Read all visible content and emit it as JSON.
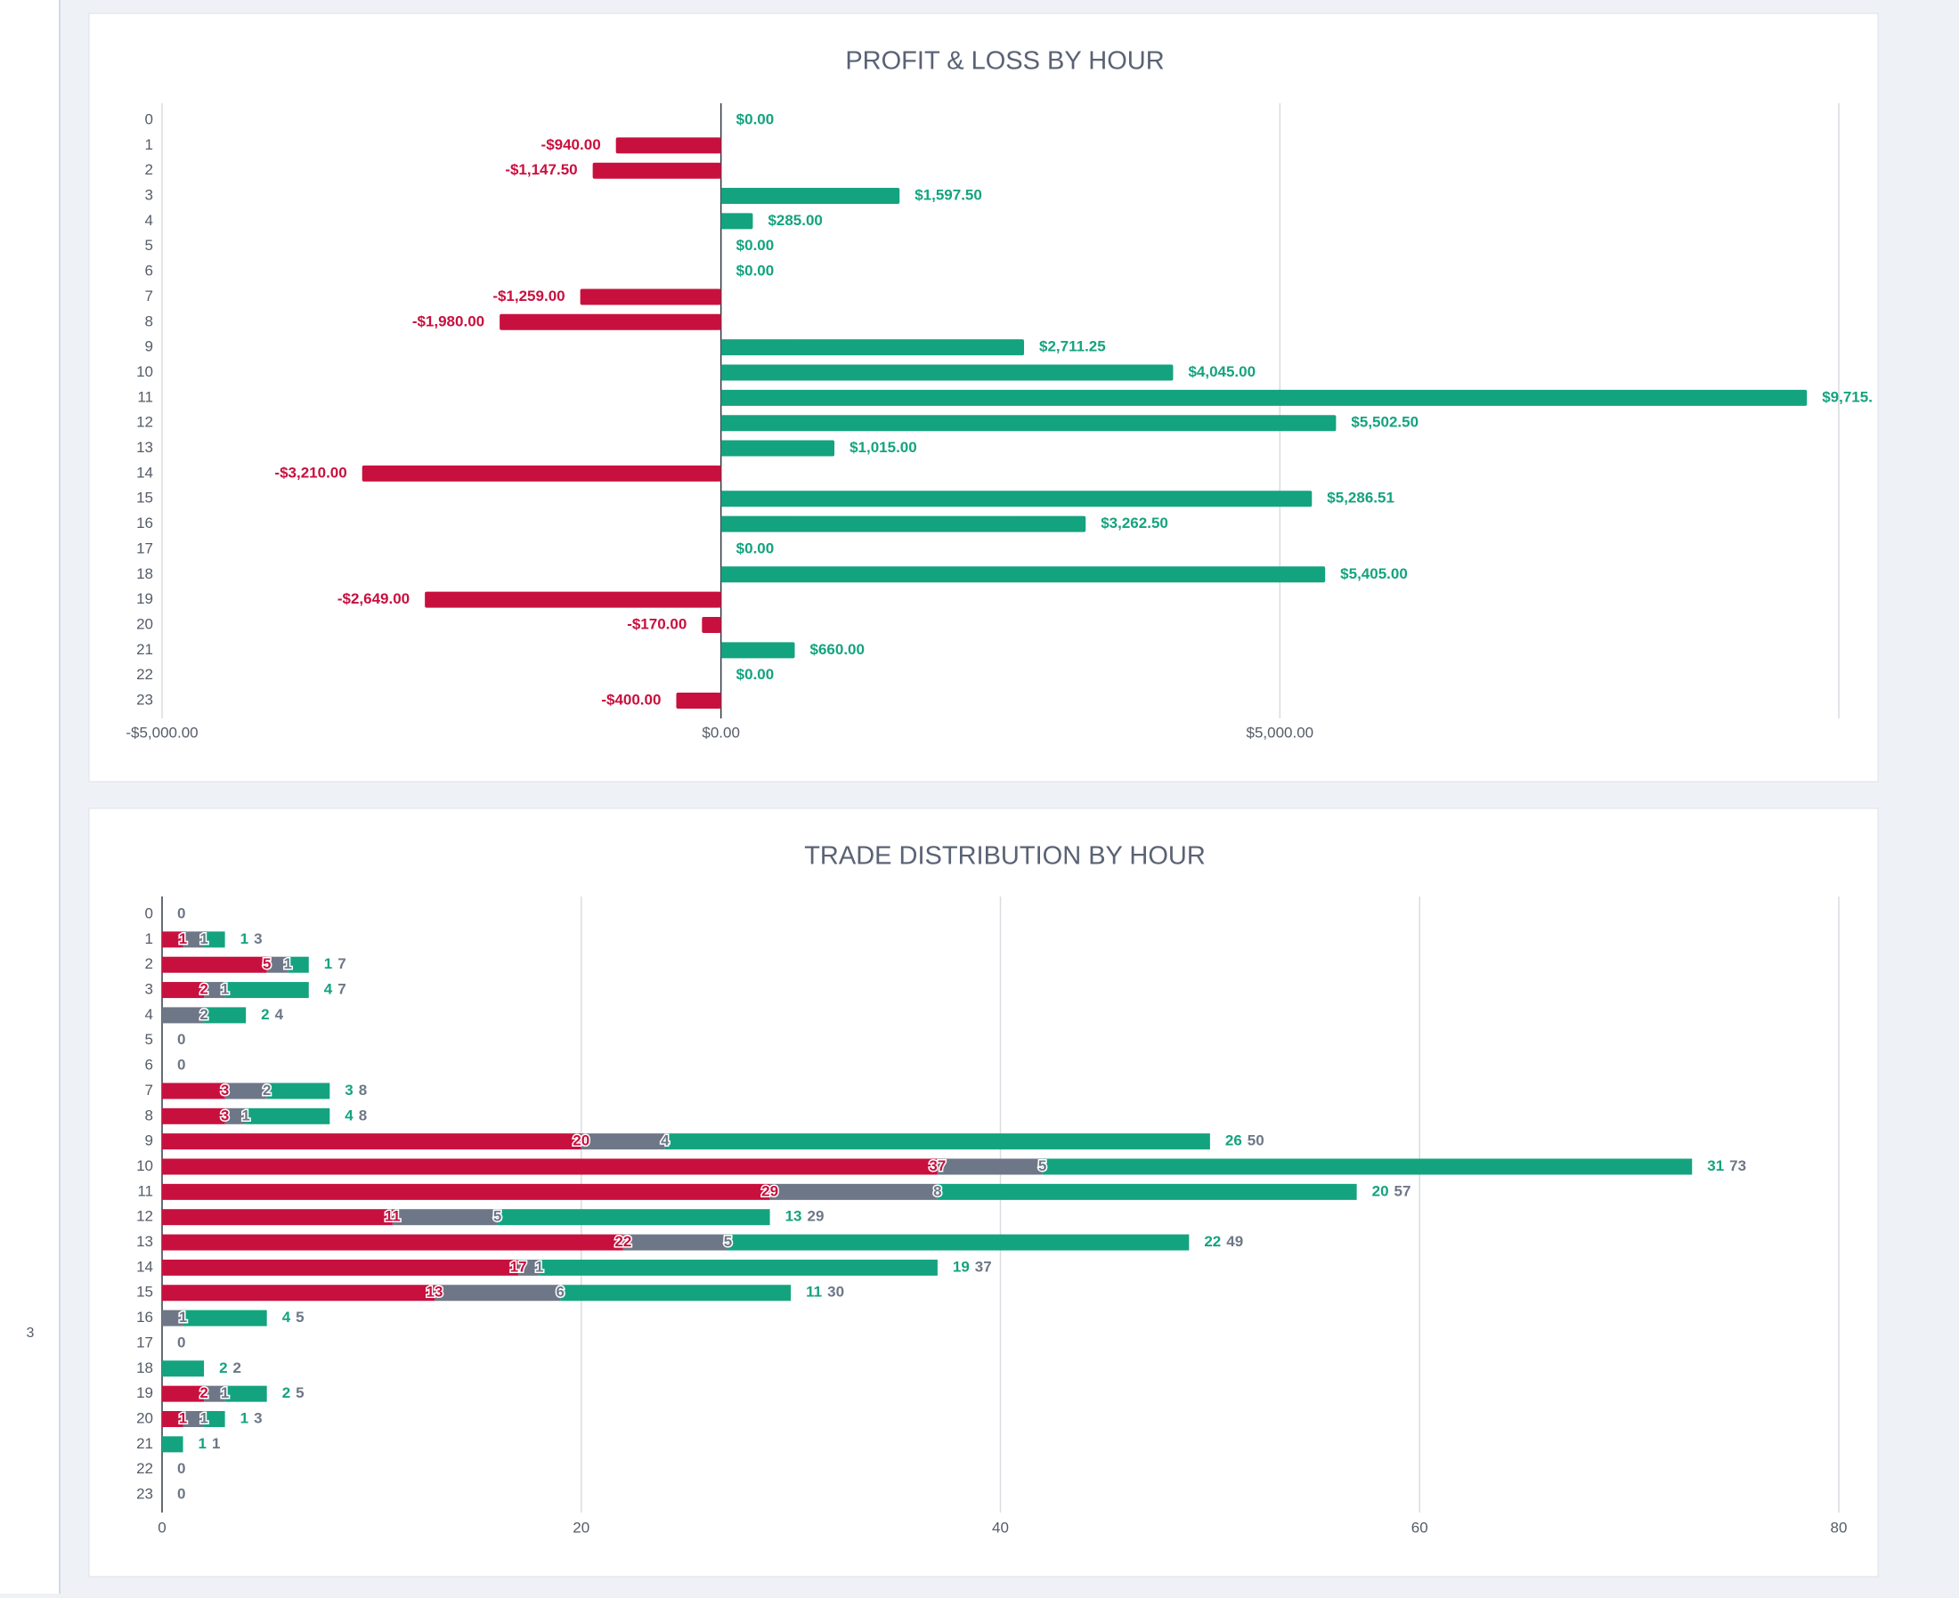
{
  "sidebar_label": "3",
  "chart_data": [
    {
      "type": "bar",
      "title": "PROFIT & LOSS BY HOUR",
      "categories": [
        "0",
        "1",
        "2",
        "3",
        "4",
        "5",
        "6",
        "7",
        "8",
        "9",
        "10",
        "11",
        "12",
        "13",
        "14",
        "15",
        "16",
        "17",
        "18",
        "19",
        "20",
        "21",
        "22",
        "23"
      ],
      "values": [
        0,
        -940,
        -1147.5,
        1597.5,
        285,
        0,
        0,
        -1259,
        -1980,
        2711.25,
        4045,
        9715,
        5502.5,
        1015,
        -3210,
        5286.51,
        3262.5,
        0,
        5405,
        -2649,
        -170,
        660,
        0,
        -400
      ],
      "value_labels": [
        "$0.00",
        "-$940.00",
        "-$1,147.50",
        "$1,597.50",
        "$285.00",
        "$0.00",
        "$0.00",
        "-$1,259.00",
        "-$1,980.00",
        "$2,711.25",
        "$4,045.00",
        "$9,715.",
        "$5,502.50",
        "$1,015.00",
        "-$3,210.00",
        "$5,286.51",
        "$3,262.50",
        "$0.00",
        "$5,405.00",
        "-$2,649.00",
        "-$170.00",
        "$660.00",
        "$0.00",
        "-$400.00"
      ],
      "positive_color": "#14a37f",
      "negative_color": "#c8103e",
      "xlim": [
        -5000,
        10000
      ],
      "xticks": [
        {
          "value": -5000,
          "label": "-$5,000.00"
        },
        {
          "value": 0,
          "label": "$0.00"
        },
        {
          "value": 5000,
          "label": "$5,000.00"
        },
        {
          "value": 10000,
          "label": null
        }
      ],
      "grid": true
    },
    {
      "type": "stacked_bar",
      "title": "TRADE DISTRIBUTION BY HOUR",
      "categories": [
        "0",
        "1",
        "2",
        "3",
        "4",
        "5",
        "6",
        "7",
        "8",
        "9",
        "10",
        "11",
        "12",
        "13",
        "14",
        "15",
        "16",
        "17",
        "18",
        "19",
        "20",
        "21",
        "22",
        "23"
      ],
      "series": [
        {
          "color": "#c8103e",
          "values": [
            0,
            1,
            5,
            2,
            0,
            0,
            0,
            3,
            3,
            20,
            37,
            29,
            11,
            22,
            17,
            13,
            0,
            0,
            0,
            2,
            1,
            0,
            0,
            0
          ]
        },
        {
          "color": "#6e7787",
          "values": [
            0,
            1,
            1,
            1,
            2,
            0,
            0,
            2,
            1,
            4,
            5,
            8,
            5,
            5,
            1,
            6,
            1,
            0,
            0,
            1,
            1,
            0,
            0,
            0
          ]
        },
        {
          "color": "#14a37f",
          "values": [
            0,
            1,
            1,
            4,
            2,
            0,
            0,
            3,
            4,
            26,
            31,
            20,
            13,
            22,
            19,
            11,
            4,
            0,
            2,
            2,
            1,
            1,
            0,
            0
          ]
        }
      ],
      "totals": [
        0,
        3,
        7,
        7,
        4,
        0,
        0,
        8,
        8,
        50,
        73,
        57,
        29,
        49,
        37,
        30,
        5,
        0,
        2,
        5,
        3,
        1,
        0,
        0
      ],
      "totals_color": "#6e7787",
      "xlim": [
        0,
        80
      ],
      "xticks": [
        0,
        20,
        40,
        60,
        80
      ],
      "grid": true
    }
  ]
}
